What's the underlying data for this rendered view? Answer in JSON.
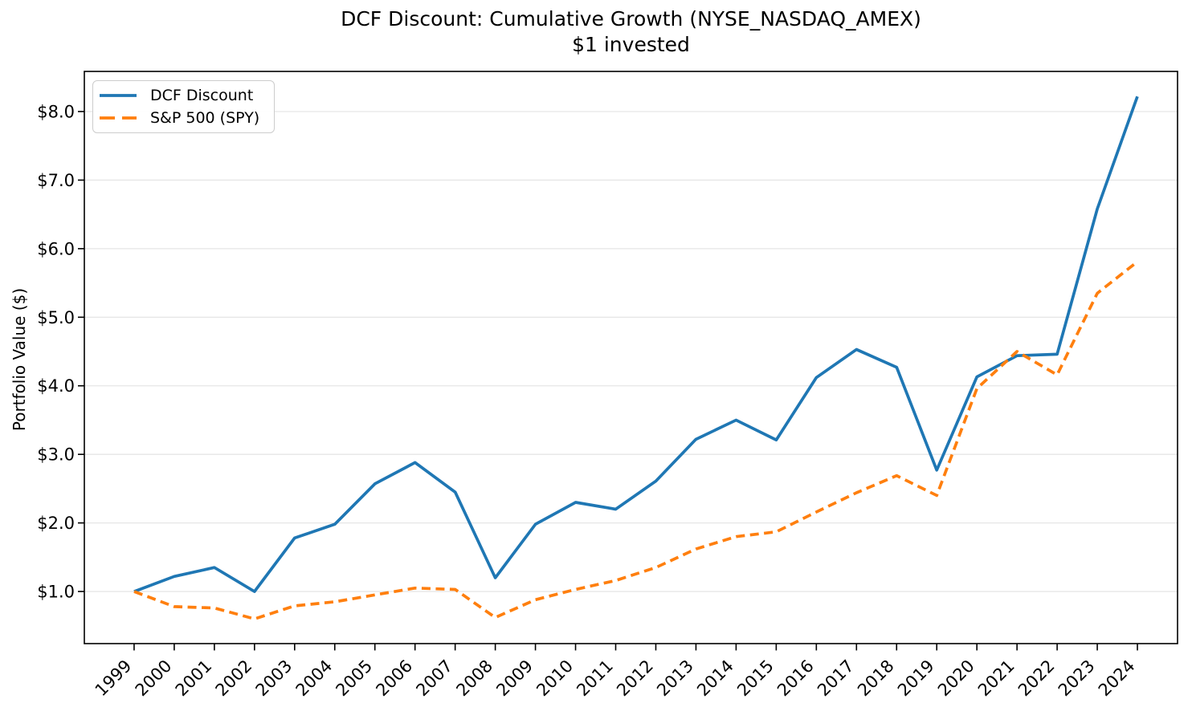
{
  "title": {
    "line1": "DCF Discount: Cumulative Growth (NYSE_NASDAQ_AMEX)",
    "line2": "$1 invested"
  },
  "y_axis_label": "Portfolio Value ($)",
  "legend": {
    "position": "upper-left",
    "items": [
      {
        "label": "DCF Discount"
      },
      {
        "label": "S&P 500 (SPY)"
      }
    ]
  },
  "chart_data": {
    "type": "line",
    "title": "DCF Discount: Cumulative Growth (NYSE_NASDAQ_AMEX)",
    "subtitle": "$1 invested",
    "xlabel": "",
    "ylabel": "Portfolio Value ($)",
    "x": [
      1999,
      2000,
      2001,
      2002,
      2003,
      2004,
      2005,
      2006,
      2007,
      2008,
      2009,
      2010,
      2011,
      2012,
      2013,
      2014,
      2015,
      2016,
      2017,
      2018,
      2019,
      2020,
      2021,
      2022,
      2023,
      2024
    ],
    "x_tick_labels": [
      "1999",
      "2000",
      "2001",
      "2002",
      "2003",
      "2004",
      "2005",
      "2006",
      "2007",
      "2008",
      "2009",
      "2010",
      "2011",
      "2012",
      "2013",
      "2014",
      "2015",
      "2016",
      "2017",
      "2018",
      "2019",
      "2020",
      "2021",
      "2022",
      "2023",
      "2024"
    ],
    "y_ticks": {
      "values": [
        1.0,
        2.0,
        3.0,
        4.0,
        5.0,
        6.0,
        7.0,
        8.0
      ],
      "labels": [
        "$1.0",
        "$2.0",
        "$3.0",
        "$4.0",
        "$5.0",
        "$6.0",
        "$7.0",
        "$8.0"
      ]
    },
    "xlim": [
      1997.76,
      2025.0
    ],
    "ylim": [
      0.24,
      8.585
    ],
    "grid": "horizontal-only",
    "legend_position": "upper-left",
    "colors": {
      "grid": "#e6e6e6",
      "axis": "#000000",
      "text": "#000000",
      "background": "#ffffff"
    },
    "series": [
      {
        "name": "DCF Discount",
        "color": "#1f77b4",
        "line_style": "solid",
        "values": [
          1.0,
          1.22,
          1.35,
          1.0,
          1.78,
          1.98,
          2.57,
          2.88,
          2.45,
          1.2,
          1.98,
          2.3,
          2.2,
          2.61,
          3.22,
          3.5,
          3.21,
          4.12,
          4.53,
          4.27,
          2.77,
          4.13,
          4.44,
          4.46,
          6.58,
          8.22
        ]
      },
      {
        "name": "S&P 500 (SPY)",
        "color": "#ff7f0e",
        "line_style": "dashed",
        "values": [
          1.0,
          0.78,
          0.76,
          0.6,
          0.79,
          0.85,
          0.95,
          1.05,
          1.03,
          0.62,
          0.88,
          1.03,
          1.16,
          1.35,
          1.62,
          1.8,
          1.87,
          2.16,
          2.44,
          2.69,
          2.4,
          3.96,
          4.5,
          4.16,
          5.35,
          5.81
        ]
      }
    ]
  }
}
